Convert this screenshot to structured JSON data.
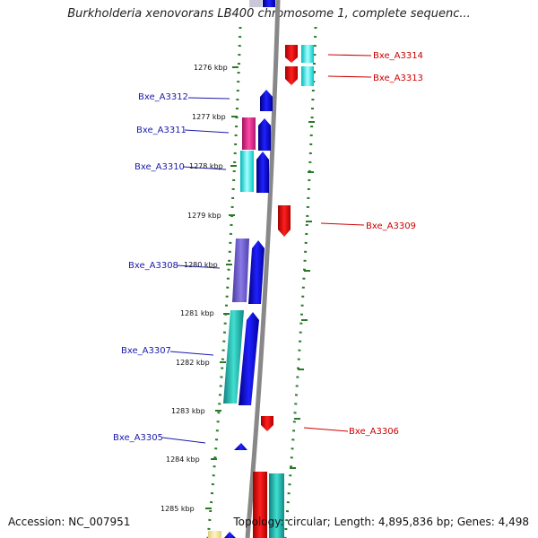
{
  "title": "Burkholderia xenovorans LB400 chromosome 1, complete sequenc...",
  "footer": {
    "accession": "Accession: NC_007951",
    "topology": "Topology: circular; Length: 4,895,836 bp; Genes: 4,498"
  },
  "ticks": [
    {
      "label": "1276 kbp"
    },
    {
      "label": "1277 kbp"
    },
    {
      "label": "1278 kbp"
    },
    {
      "label": "1279 kbp"
    },
    {
      "label": "1280 kbp"
    },
    {
      "label": "1281 kbp"
    },
    {
      "label": "1282 kbp"
    },
    {
      "label": "1283 kbp"
    },
    {
      "label": "1284 kbp"
    },
    {
      "label": "1285 kbp"
    }
  ],
  "genes": [
    {
      "name": "Bxe_A3314",
      "strand": "reverse"
    },
    {
      "name": "Bxe_A3313",
      "strand": "reverse"
    },
    {
      "name": "Bxe_A3312",
      "strand": "forward"
    },
    {
      "name": "Bxe_A3311",
      "strand": "forward"
    },
    {
      "name": "Bxe_A3310",
      "strand": "forward"
    },
    {
      "name": "Bxe_A3309",
      "strand": "reverse"
    },
    {
      "name": "Bxe_A3308",
      "strand": "forward"
    },
    {
      "name": "Bxe_A3307",
      "strand": "forward"
    },
    {
      "name": "Bxe_A3306",
      "strand": "reverse"
    },
    {
      "name": "Bxe_A3305",
      "strand": "forward"
    }
  ],
  "colors": {
    "forward": "#0000ee",
    "reverse": "#ee0000",
    "cds_cyan": "#00e0e0",
    "cds_teal": "#18b8b0",
    "cds_magenta": "#e0208a",
    "cds_slate": "#6a5acd",
    "backbone": "#888888",
    "tick_ring": "#2a7a2a"
  }
}
